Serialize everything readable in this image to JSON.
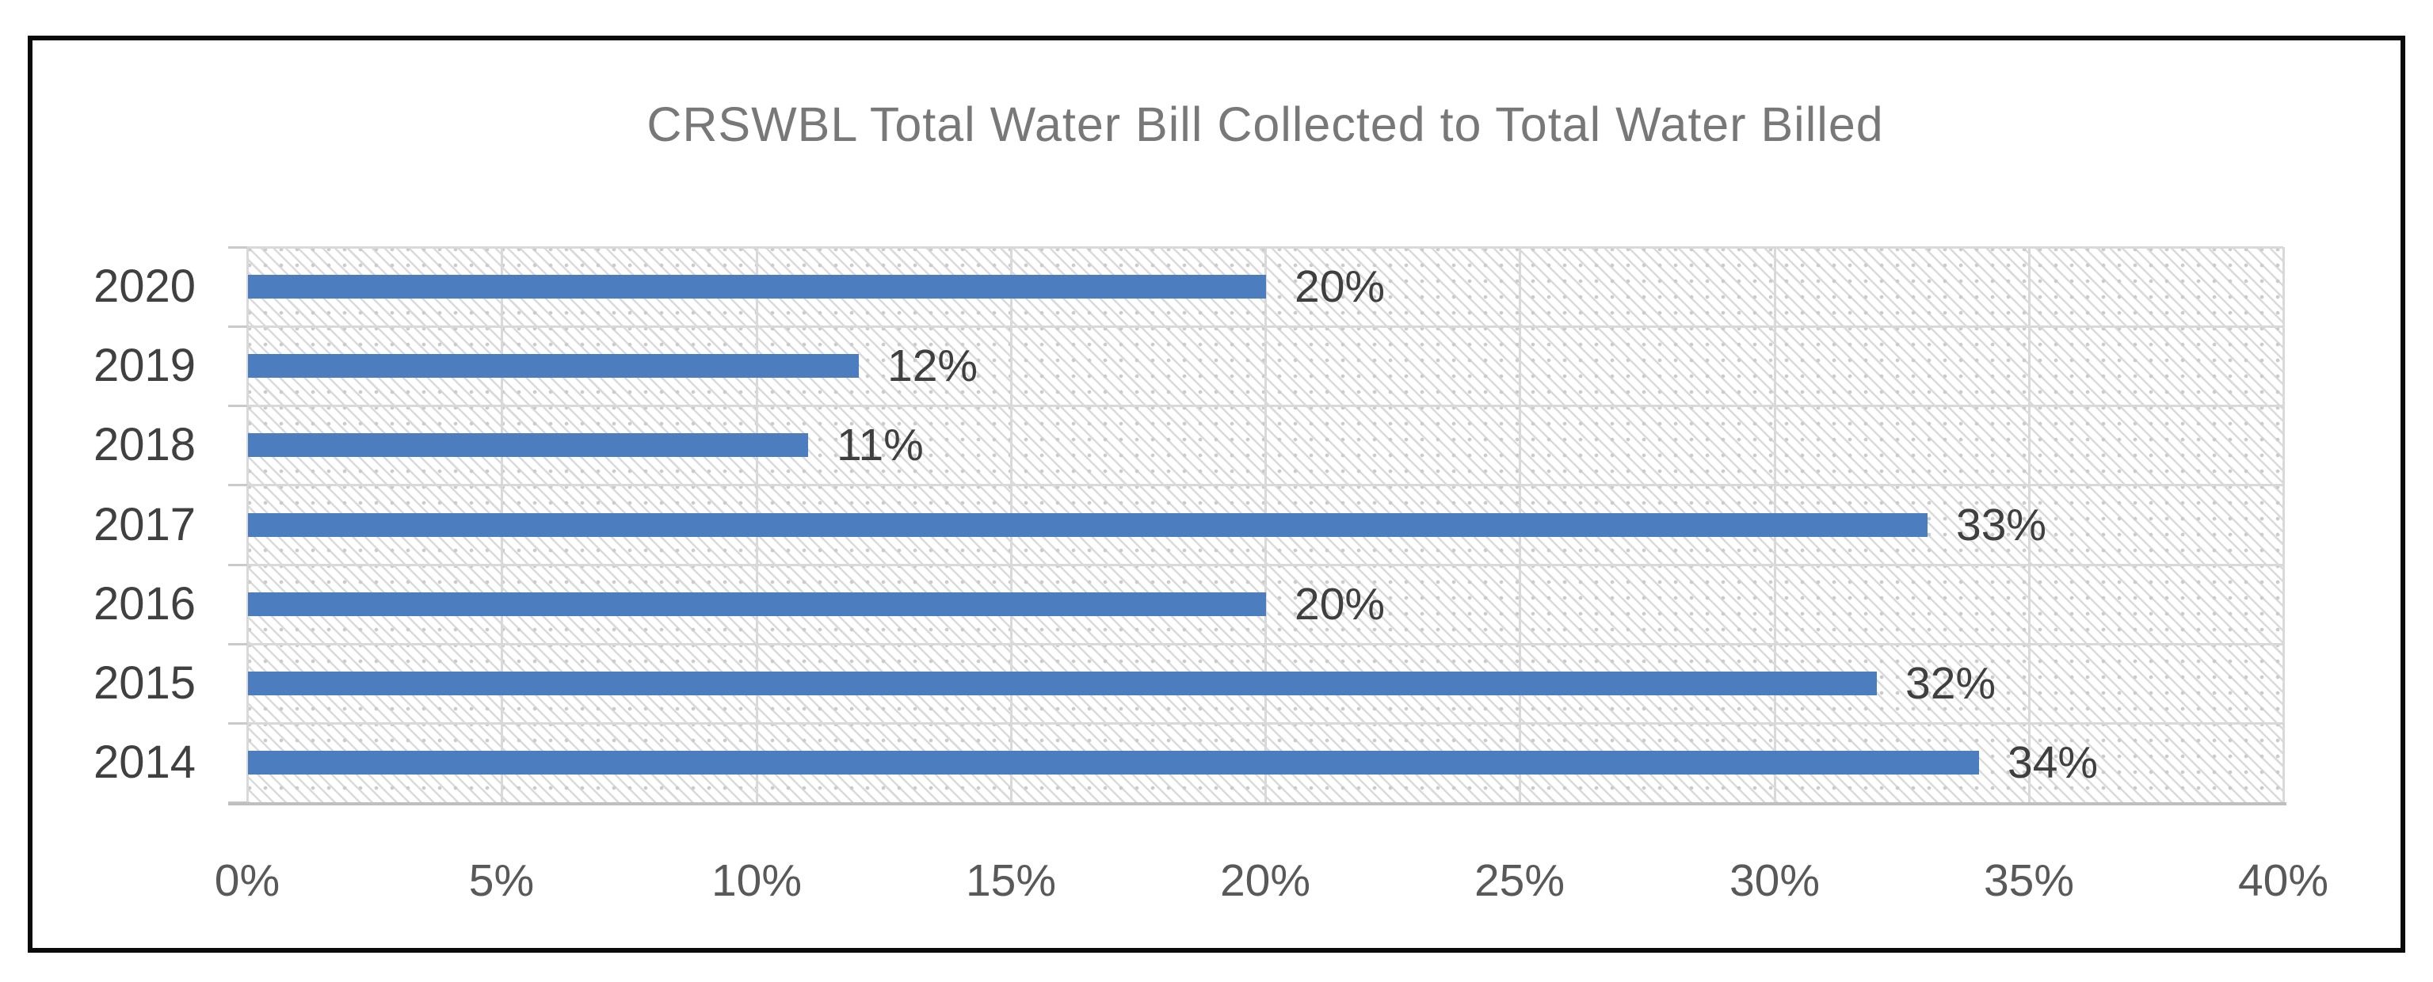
{
  "chart_data": {
    "type": "bar",
    "orientation": "horizontal",
    "title": "CRSWBL Total Water Bill Collected to Total Water Billed",
    "categories": [
      "2020",
      "2019",
      "2018",
      "2017",
      "2016",
      "2015",
      "2014"
    ],
    "values": [
      20,
      12,
      11,
      33,
      20,
      32,
      34
    ],
    "data_labels": [
      "20%",
      "12%",
      "11%",
      "33%",
      "20%",
      "32%",
      "34%"
    ],
    "xlabel": "",
    "ylabel": "",
    "xlim": [
      0,
      40
    ],
    "x_tick_step": 5,
    "x_tick_labels": [
      "0%",
      "5%",
      "10%",
      "15%",
      "20%",
      "25%",
      "30%",
      "35%",
      "40%"
    ],
    "grid": "on",
    "legend": "none",
    "plot_area_fill": "light-downward-diagonal-hatch"
  },
  "colors": {
    "bar": "#4c7dbe",
    "title_text": "#787878",
    "category_text": "#404040",
    "tick_text": "#595959",
    "data_label_text": "#3f3f3f",
    "gridline": "#d9d9d9",
    "axis_line": "#bfbfbf",
    "frame_border": "#0a0a0a",
    "hatch": "#dadada",
    "background": "#ffffff"
  }
}
